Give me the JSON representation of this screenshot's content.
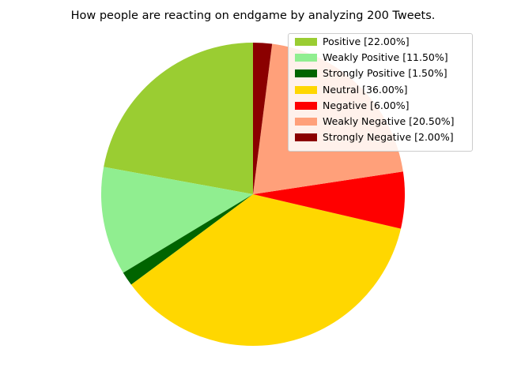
{
  "chart_data": {
    "type": "pie",
    "title": "How people are reacting on endgame by analyzing 200 Tweets.",
    "start_angle_deg": 90,
    "direction": "counterclockwise",
    "legend_position": "top-right",
    "series": [
      {
        "label": "Positive [22.00%]",
        "value": 22.0,
        "color": "#9acd32"
      },
      {
        "label": "Weakly Positive [11.50%]",
        "value": 11.5,
        "color": "#90ee90"
      },
      {
        "label": "Strongly Positive [1.50%]",
        "value": 1.5,
        "color": "#006400"
      },
      {
        "label": "Neutral [36.00%]",
        "value": 36.0,
        "color": "#ffd700"
      },
      {
        "label": "Negative [6.00%]",
        "value": 6.0,
        "color": "#ff0000"
      },
      {
        "label": "Weakly Negative [20.50%]",
        "value": 20.5,
        "color": "#ffa07a"
      },
      {
        "label": "Strongly Negative [2.00%]",
        "value": 2.0,
        "color": "#8b0000"
      }
    ]
  }
}
